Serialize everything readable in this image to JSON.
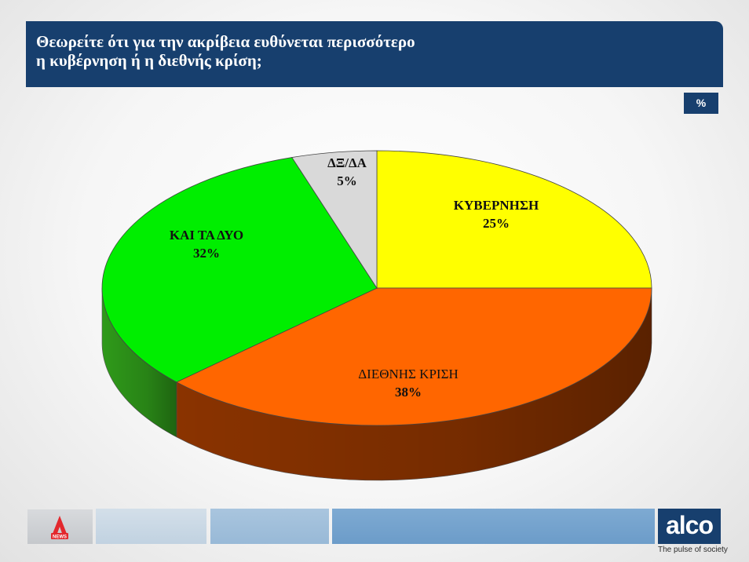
{
  "header": {
    "title_line1": "Θεωρείτε ότι για την ακρίβεια ευθύνεται περισσότερο",
    "title_line2": "η κυβέρνηση ή η διεθνής κρίση;"
  },
  "unit_label": "%",
  "chart_data": {
    "type": "pie",
    "title": "Θεωρείτε ότι για την ακρίβεια ευθύνεται περισσότερο η κυβέρνηση ή η διεθνής κρίση;",
    "unit": "%",
    "slices": [
      {
        "label": "ΚΥΒΕΡΝΗΣΗ",
        "value": 25,
        "value_label": "25%",
        "color": "#ffff00",
        "side_color": "#8a8a00"
      },
      {
        "label": "ΔΙΕΘΝΗΣ ΚΡΙΣΗ",
        "value": 38,
        "value_label": "38%",
        "color": "#ff6600",
        "side_color": "#8a3300"
      },
      {
        "label": "ΚΑΙ ΤΑ ΔΥΟ",
        "value": 32,
        "value_label": "32%",
        "color": "#00ee00",
        "side_color": "#2f9a1a"
      },
      {
        "label": "ΔΞ/ΔΑ",
        "value": 5,
        "value_label": "5%",
        "color": "#d9d9d9",
        "side_color": "#8f8f8f"
      }
    ],
    "start": "12 o'clock",
    "direction": "clockwise",
    "style": "3d"
  },
  "footer": {
    "news_logo_text": "NEWS",
    "brand": "alco",
    "tagline": "The pulse of society",
    "colors": {
      "navy": "#173f6e",
      "news_red": "#e3282d"
    }
  }
}
